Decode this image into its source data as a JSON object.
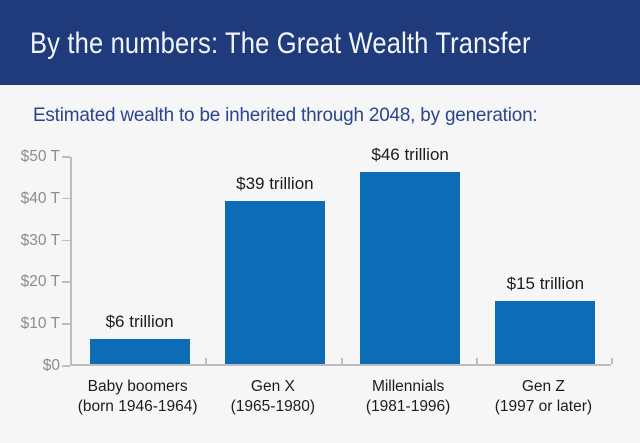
{
  "header": {
    "title": "By the numbers: The Great Wealth Transfer"
  },
  "subtitle": {
    "text": "Estimated wealth to be inherited through 2048, by generation:"
  },
  "colors": {
    "background": "#f6f6f6",
    "header_bg": "#1f3b7c",
    "header_text": "#f2f5fa",
    "subtitle_text": "#2a4490",
    "bar": "#0c6cb5",
    "axis_line": "#bdbdbd",
    "axis_label": "#8c8c8c",
    "data_label": "#1c1c1c"
  },
  "chart_data": {
    "type": "bar",
    "title": "Estimated wealth to be inherited through 2048, by generation",
    "categories": [
      "Baby boomers",
      "Gen X",
      "Millennials",
      "Gen Z"
    ],
    "category_sublabels": [
      "(born 1946-1964)",
      "(1965-1980)",
      "(1981-1996)",
      "(1997 or later)"
    ],
    "values": [
      6,
      39,
      46,
      15
    ],
    "data_labels": [
      "$6 trillion",
      "$39 trillion",
      "$46 trillion",
      "$15 trillion"
    ],
    "unit": "trillions of USD",
    "ylim": [
      0,
      50
    ],
    "ytick_interval": 10,
    "ytick_labels_top_down": [
      "$50 T",
      "$40 T",
      "$30 T",
      "$20 T",
      "$10 T",
      "$0"
    ],
    "grid": false,
    "legend": false,
    "bar_label_position": "above"
  }
}
